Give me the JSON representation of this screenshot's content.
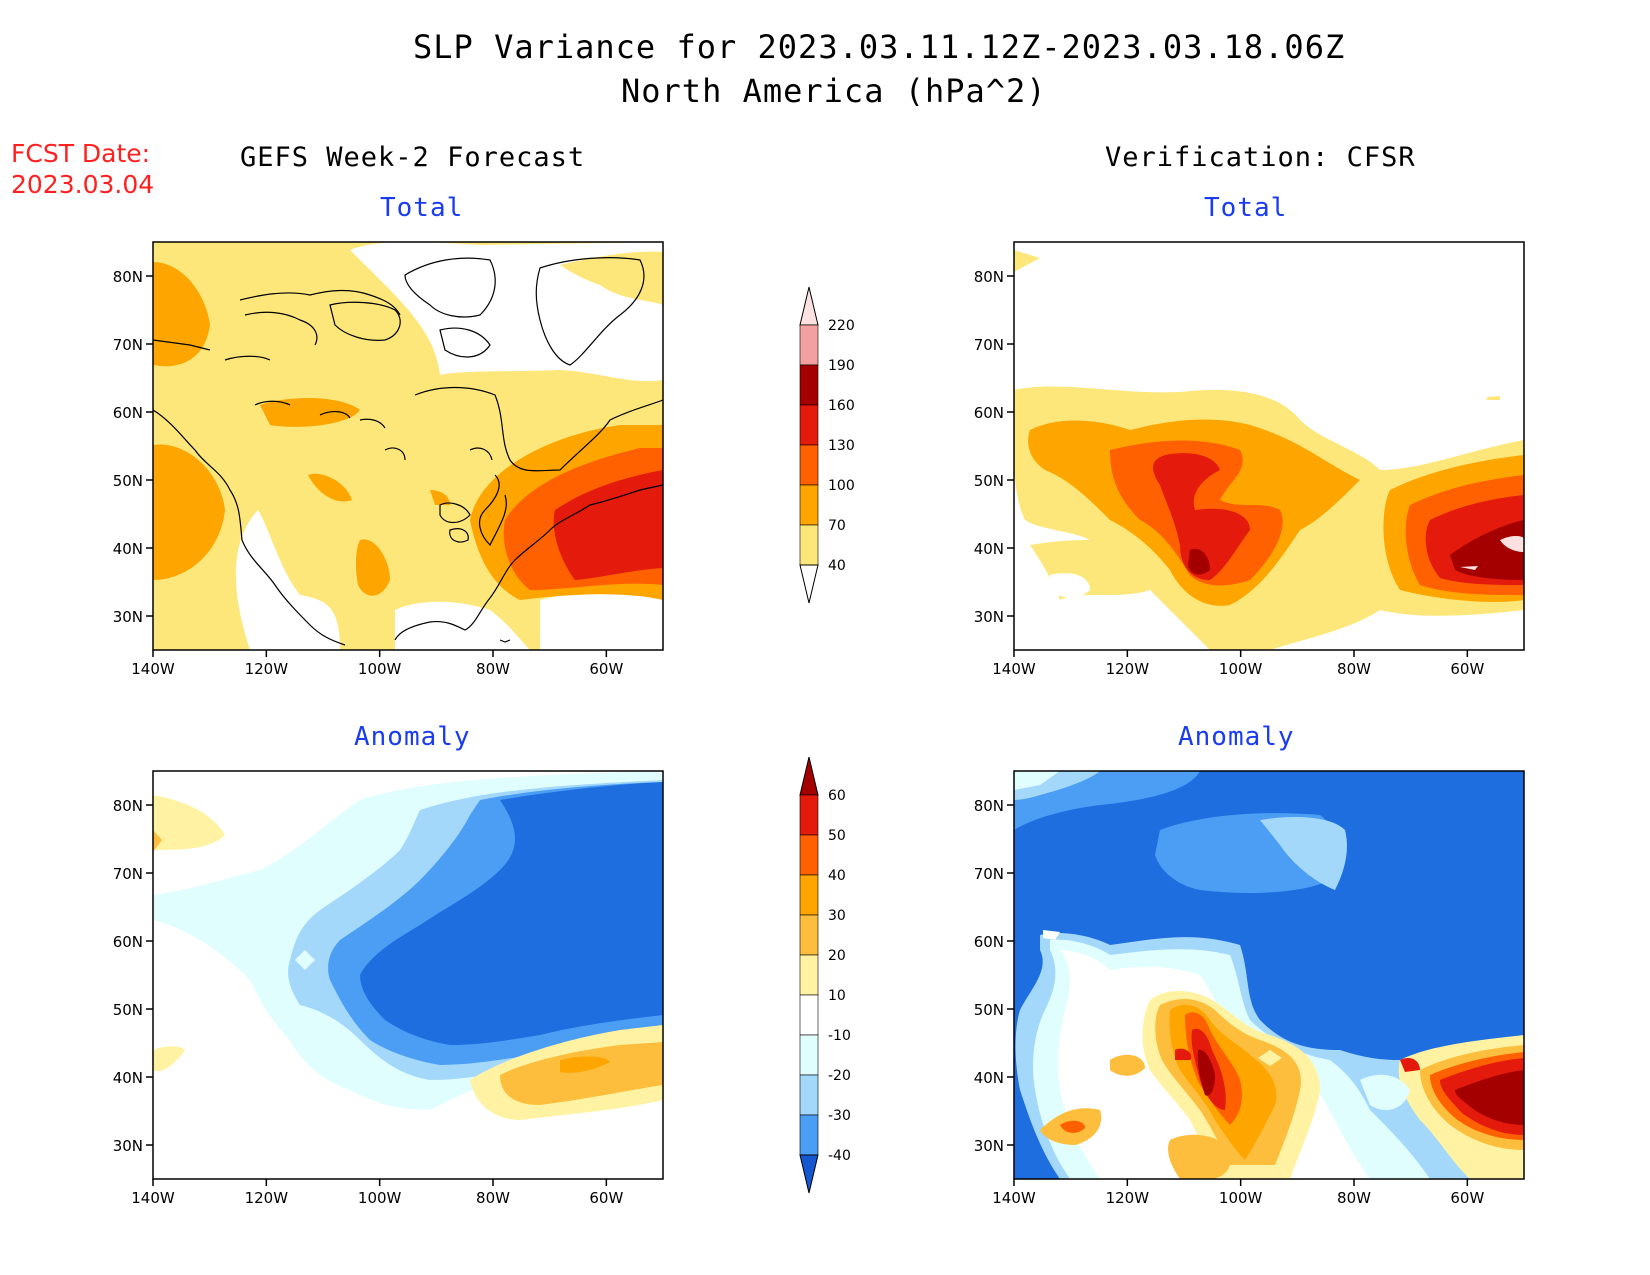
{
  "title": {
    "line1": "SLP Variance for 2023.03.11.12Z-2023.03.18.06Z",
    "line2": "North America (hPa^2)"
  },
  "fcst_date": {
    "label": "FCST Date:",
    "value": "2023.03.04"
  },
  "columns": {
    "left": "GEFS Week-2 Forecast",
    "right": "Verification: CFSR"
  },
  "panels": [
    {
      "id": "gefs-total",
      "subtitle": "Total"
    },
    {
      "id": "cfsr-total",
      "subtitle": "Total"
    },
    {
      "id": "gefs-anomaly",
      "subtitle": "Anomaly"
    },
    {
      "id": "cfsr-anomaly",
      "subtitle": "Anomaly"
    }
  ],
  "axes": {
    "lat_labels": [
      "80N",
      "70N",
      "60N",
      "50N",
      "40N",
      "30N"
    ],
    "lat_values": [
      80,
      70,
      60,
      50,
      40,
      30
    ],
    "lon_labels": [
      "140W",
      "120W",
      "100W",
      "80W",
      "60W"
    ],
    "lon_values": [
      -140,
      -120,
      -100,
      -80,
      -60
    ],
    "lat_range": [
      25,
      85
    ],
    "lon_range": [
      -140,
      -50
    ]
  },
  "total_colorbar": {
    "levels": [
      "40",
      "70",
      "100",
      "130",
      "160",
      "190",
      "220"
    ],
    "colors": [
      "#fee77a",
      "#ffa500",
      "#ff6000",
      "#e31a0c",
      "#a50000",
      "#f2a0a0",
      "#fde1e1"
    ]
  },
  "anomaly_colorbar": {
    "levels": [
      "60",
      "50",
      "40",
      "30",
      "20",
      "10",
      "-10",
      "-20",
      "-30",
      "-40"
    ],
    "colors": [
      "#a50000",
      "#e31a0c",
      "#ff6000",
      "#ffa500",
      "#fdbe3e",
      "#fff3a3",
      "#ffffff",
      "#e1feff",
      "#a4d8fb",
      "#4c9ef4",
      "#1e6ee0",
      "#1358d0"
    ]
  }
}
